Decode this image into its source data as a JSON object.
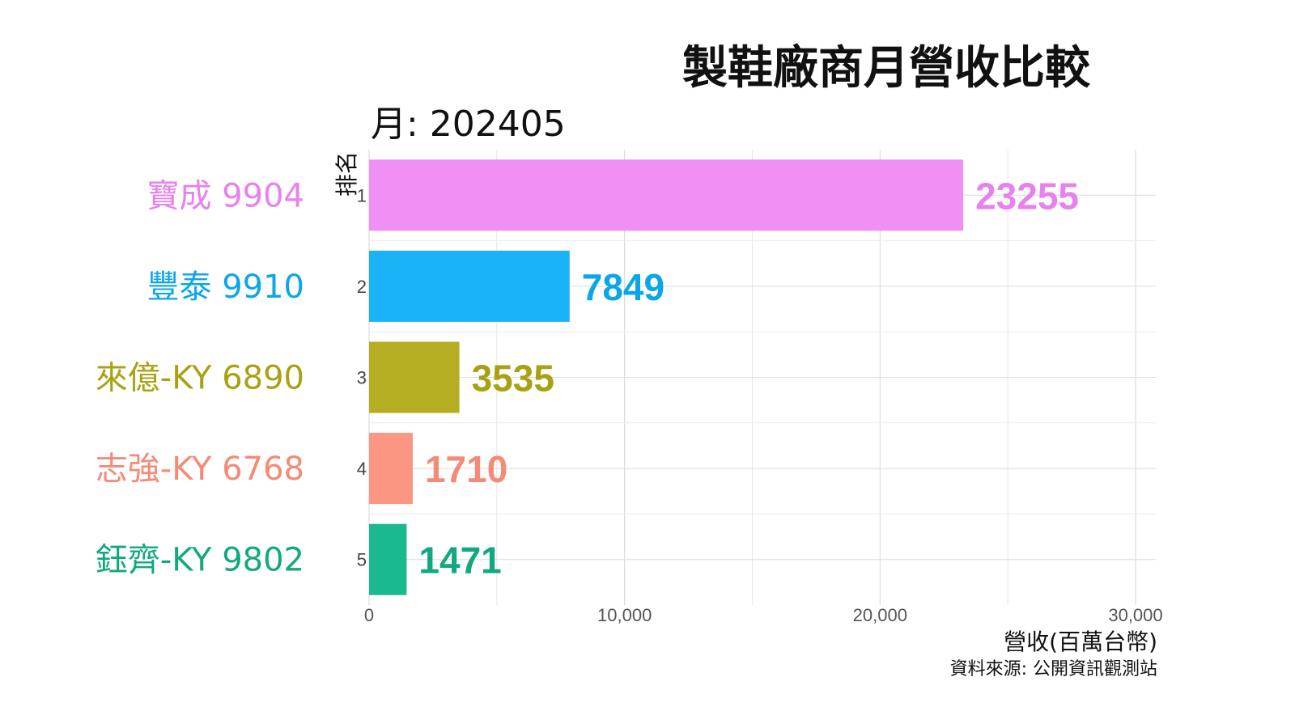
{
  "chart_data": {
    "type": "bar",
    "orientation": "horizontal",
    "title": "製鞋廠商月營收比較",
    "subtitle": "月: 202405",
    "xlabel": "營收(百萬台幣)",
    "ylabel": "排名",
    "caption": "資料來源: 公開資訊觀測站",
    "xlim": [
      0,
      30000
    ],
    "xticks": [
      0,
      10000,
      20000,
      30000
    ],
    "xtick_labels": [
      "0",
      "10,000",
      "20,000",
      "30,000"
    ],
    "grid": true,
    "categories": [
      "寶成 9904",
      "豐泰 9910",
      "來億-KY 6890",
      "志強-KY 6768",
      "鈺齊-KY 9802"
    ],
    "ranks": [
      "1",
      "2",
      "3",
      "4",
      "5"
    ],
    "values": [
      23255,
      7849,
      3535,
      1710,
      1471
    ],
    "value_labels": [
      "23255",
      "7849",
      "3535",
      "1710",
      "1471"
    ],
    "colors": [
      "#f08ff5",
      "#1bb3f7",
      "#b5ad22",
      "#fb9683",
      "#1bb98f"
    ],
    "label_colors": [
      "#e881ee",
      "#0ba6e8",
      "#a9a114",
      "#f58a76",
      "#12a880"
    ]
  }
}
